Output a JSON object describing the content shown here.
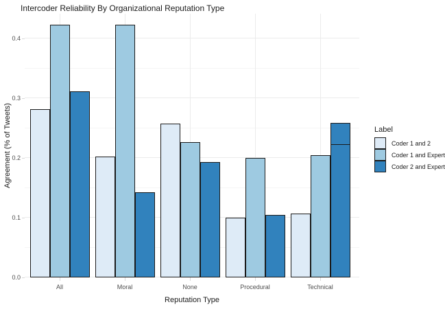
{
  "chart_data": {
    "type": "bar",
    "title": "Intercoder Reliability By Organizational Reputation Type",
    "xlabel": "Reputation Type",
    "ylabel": "Agreement (% of Tweets)",
    "categories": [
      "All",
      "Moral",
      "None",
      "Procedural",
      "Technical"
    ],
    "series": [
      {
        "name": "Coder 1 and 2",
        "color": "#DEEBF7",
        "values": [
          0.282,
          0.202,
          0.258,
          0.1,
          0.107
        ]
      },
      {
        "name": "Coder 1 and Expert",
        "color": "#9ECAE1",
        "values": [
          0.423,
          0.423,
          0.226,
          0.2,
          0.205
        ]
      },
      {
        "name": "Coder 2 and Expert",
        "color": "#3182BD",
        "values": [
          0.312,
          0.142,
          0.193,
          0.105,
          0.259
        ],
        "stack_dividers": [
          {
            "category": "Technical",
            "at": 0.221
          }
        ]
      }
    ],
    "ylim": [
      0,
      0.441
    ],
    "y_major_breaks": [
      0,
      0.1,
      0.2,
      0.3,
      0.4
    ],
    "y_minor_breaks": [
      0.05,
      0.15,
      0.25,
      0.35
    ],
    "grid": true,
    "legend_position": "right",
    "legend_title": "Label",
    "colors": {
      "bar_border": "#1A1A1A",
      "grid_major": "#EBEBEB",
      "grid_minor": "#F5F5F5",
      "axis_text": "#4D4D4D",
      "text": "#1A1A1A",
      "tick": "#D9D9D9",
      "background": "#FFFFFF"
    }
  }
}
